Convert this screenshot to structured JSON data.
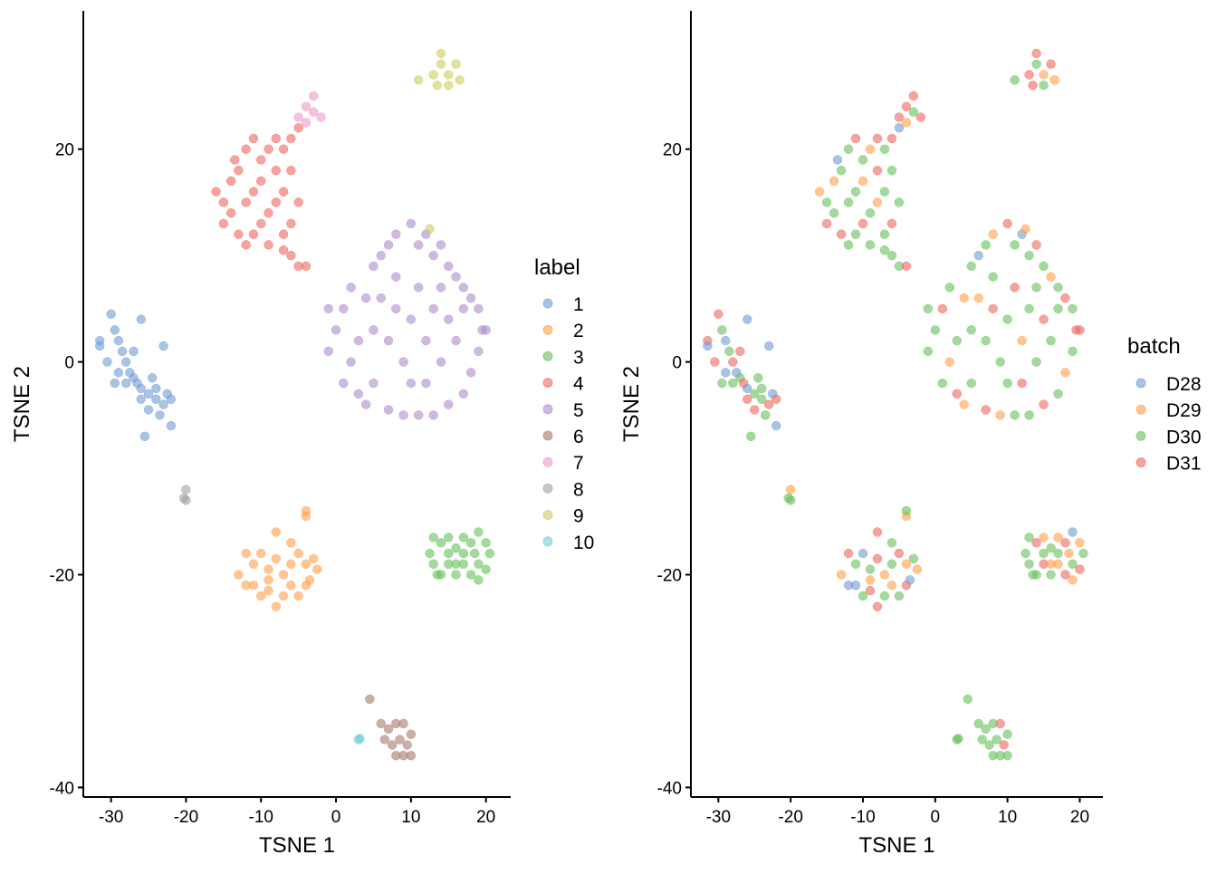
{
  "chart_data": [
    {
      "type": "scatter",
      "color_by": "label",
      "xlabel": "TSNE 1",
      "ylabel": "TSNE 2",
      "xlim": [
        -33.7,
        23.3
      ],
      "ylim": [
        -40.9,
        33
      ],
      "xticks": [
        -30,
        -20,
        -10,
        0,
        10,
        20
      ],
      "yticks": [
        -40,
        -20,
        0,
        20
      ],
      "grid": false,
      "legend": {
        "title": "label",
        "placement": "right",
        "entries": [
          "1",
          "2",
          "3",
          "4",
          "5",
          "6",
          "7",
          "8",
          "9",
          "10"
        ]
      },
      "colors": {
        "1": "#6E9BD0",
        "2": "#FF9E4A",
        "3": "#67BF5C",
        "4": "#ED665D",
        "5": "#AD8BC9",
        "6": "#A8786E",
        "7": "#ED97CA",
        "8": "#A2A2A2",
        "9": "#CDCC5D",
        "10": "#6DCCDA"
      }
    },
    {
      "type": "scatter",
      "color_by": "batch",
      "xlabel": "TSNE 1",
      "ylabel": "TSNE 2",
      "xlim": [
        -33.8,
        23.2
      ],
      "ylim": [
        -40.9,
        33
      ],
      "xticks": [
        -30,
        -20,
        -10,
        0,
        10,
        20
      ],
      "yticks": [
        -40,
        -20,
        0,
        20
      ],
      "grid": false,
      "legend": {
        "title": "batch",
        "placement": "right",
        "entries": [
          "D28",
          "D29",
          "D30",
          "D31"
        ]
      },
      "colors": {
        "D28": "#6E9BD0",
        "D29": "#FF9E4A",
        "D30": "#67BF5C",
        "D31": "#ED665D"
      }
    }
  ],
  "points": [
    {
      "label": "1",
      "pts": [
        [
          -30,
          4.5,
          "D31"
        ],
        [
          -29.5,
          3,
          "D30"
        ],
        [
          -29,
          2,
          "D28"
        ],
        [
          -28.5,
          1,
          "D30"
        ],
        [
          -28,
          0,
          "D31"
        ],
        [
          -27.5,
          -1,
          "D28"
        ],
        [
          -27,
          -1.5,
          "D30"
        ],
        [
          -26.5,
          -2,
          "D31"
        ],
        [
          -26,
          -2.5,
          "D28"
        ],
        [
          -25,
          -3,
          "D30"
        ],
        [
          -24,
          -3.5,
          "D30"
        ],
        [
          -23,
          -4,
          "D31"
        ],
        [
          -22.5,
          -3,
          "D28"
        ],
        [
          -23.5,
          -5,
          "D30"
        ],
        [
          -25,
          -4.5,
          "D31"
        ],
        [
          -28,
          -2,
          "D30"
        ],
        [
          -29,
          -1,
          "D28"
        ],
        [
          -27,
          1,
          "D31"
        ],
        [
          -31.5,
          2,
          "D31"
        ],
        [
          -31.5,
          1.5,
          "D28"
        ],
        [
          -26,
          4,
          "D28"
        ],
        [
          -25.5,
          -7,
          "D30"
        ],
        [
          -23,
          1.5,
          "D28"
        ],
        [
          -22,
          -6,
          "D28"
        ],
        [
          -24.5,
          -1.5,
          "D30"
        ],
        [
          -26,
          -3.5,
          "D31"
        ],
        [
          -29.5,
          -2,
          "D30"
        ],
        [
          -30.5,
          0,
          "D31"
        ],
        [
          -24,
          -2.5,
          "D30"
        ],
        [
          -22,
          -3.5,
          "D31"
        ]
      ]
    },
    {
      "label": "2",
      "pts": [
        [
          -12,
          -18,
          "D31"
        ],
        [
          -11,
          -19,
          "D30"
        ],
        [
          -10,
          -18,
          "D28"
        ],
        [
          -9,
          -19.5,
          "D30"
        ],
        [
          -8,
          -18.5,
          "D31"
        ],
        [
          -7,
          -20,
          "D29"
        ],
        [
          -6,
          -19,
          "D30"
        ],
        [
          -5,
          -18,
          "D31"
        ],
        [
          -4,
          -19,
          "D29"
        ],
        [
          -3,
          -18.5,
          "D30"
        ],
        [
          -2.5,
          -19.5,
          "D29"
        ],
        [
          -11,
          -21,
          "D28"
        ],
        [
          -10,
          -22,
          "D30"
        ],
        [
          -9,
          -21.5,
          "D31"
        ],
        [
          -8,
          -23,
          "D31"
        ],
        [
          -7,
          -22,
          "D30"
        ],
        [
          -6,
          -21,
          "D29"
        ],
        [
          -5,
          -22,
          "D30"
        ],
        [
          -4,
          -21,
          "D31"
        ],
        [
          -13,
          -20,
          "D29"
        ],
        [
          -12,
          -21,
          "D28"
        ],
        [
          -8,
          -16,
          "D31"
        ],
        [
          -4,
          -14.5,
          "D29"
        ],
        [
          -4,
          -14,
          "D30"
        ],
        [
          -6,
          -17,
          "D30"
        ],
        [
          -9,
          -20.5,
          "D29"
        ],
        [
          -3.5,
          -20.5,
          "D28"
        ]
      ]
    },
    {
      "label": "3",
      "pts": [
        [
          13,
          -16.5,
          "D30"
        ],
        [
          14,
          -17,
          "D31"
        ],
        [
          15,
          -16.5,
          "D29"
        ],
        [
          16,
          -17.5,
          "D30"
        ],
        [
          17,
          -16.5,
          "D29"
        ],
        [
          18,
          -17,
          "D31"
        ],
        [
          19,
          -16,
          "D28"
        ],
        [
          20,
          -17,
          "D29"
        ],
        [
          13,
          -19,
          "D30"
        ],
        [
          14,
          -20,
          "D30"
        ],
        [
          15,
          -19,
          "D31"
        ],
        [
          16,
          -20,
          "D30"
        ],
        [
          17,
          -19,
          "D29"
        ],
        [
          18,
          -20,
          "D31"
        ],
        [
          19,
          -19,
          "D30"
        ],
        [
          20,
          -19.5,
          "D31"
        ],
        [
          19,
          -20.5,
          "D29"
        ],
        [
          15,
          -18,
          "D30"
        ],
        [
          17,
          -18,
          "D30"
        ],
        [
          18.5,
          -18,
          "D29"
        ],
        [
          12.5,
          -18,
          "D30"
        ],
        [
          13.5,
          -20,
          "D30"
        ],
        [
          16,
          -19,
          "D29"
        ],
        [
          20.5,
          -18,
          "D30"
        ]
      ]
    },
    {
      "label": "4",
      "pts": [
        [
          -16,
          16,
          "D29"
        ],
        [
          -15,
          15,
          "D30"
        ],
        [
          -14,
          14,
          "D30"
        ],
        [
          -15,
          13,
          "D31"
        ],
        [
          -14,
          17,
          "D29"
        ],
        [
          -13,
          18,
          "D30"
        ],
        [
          -12,
          20,
          "D30"
        ],
        [
          -11,
          21,
          "D31"
        ],
        [
          -10,
          19,
          "D30"
        ],
        [
          -9,
          20,
          "D29"
        ],
        [
          -8,
          21,
          "D31"
        ],
        [
          -7,
          20,
          "D30"
        ],
        [
          -6,
          21,
          "D31"
        ],
        [
          -5,
          22,
          "D28"
        ],
        [
          -6,
          18,
          "D30"
        ],
        [
          -7,
          16,
          "D30"
        ],
        [
          -8,
          15,
          "D29"
        ],
        [
          -9,
          14,
          "D30"
        ],
        [
          -10,
          13,
          "D31"
        ],
        [
          -11,
          12,
          "D30"
        ],
        [
          -12,
          11,
          "D30"
        ],
        [
          -13,
          12,
          "D31"
        ],
        [
          -11,
          16,
          "D30"
        ],
        [
          -12,
          15,
          "D30"
        ],
        [
          -10,
          17,
          "D29"
        ],
        [
          -8,
          18,
          "D31"
        ],
        [
          -9,
          11,
          "D30"
        ],
        [
          -7,
          12,
          "D30"
        ],
        [
          -6,
          13,
          "D31"
        ],
        [
          -5,
          15,
          "D30"
        ],
        [
          -13.5,
          19,
          "D28"
        ],
        [
          -7,
          10.5,
          "D30"
        ],
        [
          -6,
          10,
          "D30"
        ],
        [
          -5,
          9,
          "D30"
        ],
        [
          -4,
          9,
          "D31"
        ]
      ]
    },
    {
      "label": "5",
      "pts": [
        [
          0,
          3,
          "D30"
        ],
        [
          1,
          5,
          "D31"
        ],
        [
          2,
          7,
          "D30"
        ],
        [
          2,
          0,
          "D29"
        ],
        [
          1,
          -2,
          "D30"
        ],
        [
          3,
          -3,
          "D31"
        ],
        [
          4,
          -4,
          "D29"
        ],
        [
          5,
          9,
          "D30"
        ],
        [
          6,
          10,
          "D28"
        ],
        [
          7,
          11,
          "D30"
        ],
        [
          8,
          12,
          "D29"
        ],
        [
          10,
          13,
          "D31"
        ],
        [
          11,
          11,
          "D30"
        ],
        [
          12,
          12,
          "D28"
        ],
        [
          13,
          10,
          "D30"
        ],
        [
          14,
          11,
          "D31"
        ],
        [
          15,
          9,
          "D30"
        ],
        [
          16,
          8,
          "D29"
        ],
        [
          17,
          7,
          "D30"
        ],
        [
          18,
          6,
          "D31"
        ],
        [
          19,
          5,
          "D30"
        ],
        [
          19.5,
          3,
          "D31"
        ],
        [
          19,
          1,
          "D30"
        ],
        [
          18,
          -1,
          "D29"
        ],
        [
          17,
          -3,
          "D30"
        ],
        [
          15,
          -4,
          "D31"
        ],
        [
          13,
          -5,
          "D30"
        ],
        [
          11,
          -5,
          "D30"
        ],
        [
          9,
          -5,
          "D29"
        ],
        [
          7,
          -4.5,
          "D31"
        ],
        [
          5,
          -2,
          "D30"
        ],
        [
          5,
          3,
          "D30"
        ],
        [
          6,
          6,
          "D29"
        ],
        [
          7,
          2,
          "D30"
        ],
        [
          8,
          5,
          "D31"
        ],
        [
          9,
          0,
          "D30"
        ],
        [
          10,
          4,
          "D30"
        ],
        [
          11,
          7,
          "D31"
        ],
        [
          12,
          2,
          "D29"
        ],
        [
          13,
          5,
          "D30"
        ],
        [
          14,
          0,
          "D30"
        ],
        [
          15,
          4,
          "D31"
        ],
        [
          16,
          2,
          "D30"
        ],
        [
          17,
          5,
          "D30"
        ],
        [
          12,
          -2,
          "D31"
        ],
        [
          8,
          8,
          "D30"
        ],
        [
          4,
          6,
          "D29"
        ],
        [
          3,
          2,
          "D30"
        ],
        [
          10,
          -2,
          "D30"
        ],
        [
          14,
          7,
          "D30"
        ],
        [
          -1,
          1,
          "D30"
        ],
        [
          -1,
          5,
          "D30"
        ],
        [
          20,
          3,
          "D31"
        ]
      ]
    },
    {
      "label": "6",
      "pts": [
        [
          6,
          -34,
          "D30"
        ],
        [
          7,
          -34.5,
          "D30"
        ],
        [
          8,
          -34,
          "D30"
        ],
        [
          9,
          -34,
          "D31"
        ],
        [
          10,
          -35,
          "D30"
        ],
        [
          6.5,
          -35.5,
          "D30"
        ],
        [
          7.5,
          -36,
          "D30"
        ],
        [
          8.5,
          -35.5,
          "D30"
        ],
        [
          9.5,
          -36,
          "D31"
        ],
        [
          8,
          -37,
          "D30"
        ],
        [
          9,
          -37,
          "D30"
        ],
        [
          10,
          -37,
          "D30"
        ],
        [
          4.5,
          -31.7,
          "D30"
        ]
      ]
    },
    {
      "label": "7",
      "pts": [
        [
          -5,
          23,
          "D31"
        ],
        [
          -4,
          24,
          "D31"
        ],
        [
          -3,
          25,
          "D31"
        ],
        [
          -4,
          22.5,
          "D29"
        ],
        [
          -3,
          23.5,
          "D30"
        ],
        [
          -2,
          23,
          "D31"
        ]
      ]
    },
    {
      "label": "8",
      "pts": [
        [
          -20,
          -12,
          "D29"
        ],
        [
          -20,
          -13,
          "D30"
        ],
        [
          -20.3,
          -12.8,
          "D30"
        ]
      ]
    },
    {
      "label": "9",
      "pts": [
        [
          13,
          27,
          "D31"
        ],
        [
          14,
          28,
          "D30"
        ],
        [
          15,
          27,
          "D29"
        ],
        [
          16,
          28,
          "D31"
        ],
        [
          13.5,
          26,
          "D31"
        ],
        [
          15,
          26,
          "D30"
        ],
        [
          14,
          29,
          "D31"
        ],
        [
          16.5,
          26.5,
          "D29"
        ],
        [
          11,
          26.5,
          "D30"
        ],
        [
          12.5,
          12.5,
          "D29"
        ]
      ]
    },
    {
      "label": "10",
      "pts": [
        [
          3,
          -35.5,
          "D30"
        ],
        [
          3.2,
          -35.4,
          "D30"
        ]
      ]
    }
  ]
}
